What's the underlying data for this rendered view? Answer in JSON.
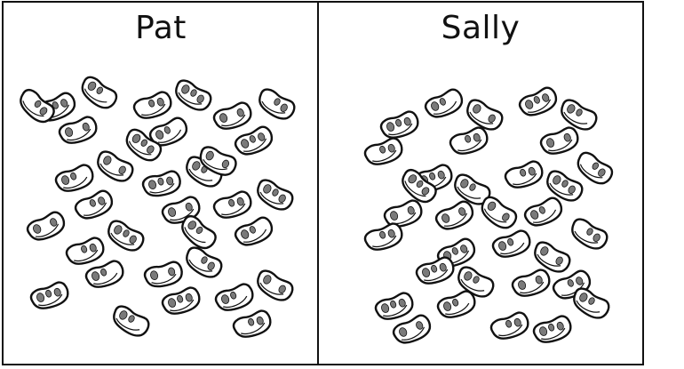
{
  "panels": {
    "left": {
      "title": "Pat"
    },
    "right": {
      "title": "Sally"
    }
  },
  "bean_counts": {
    "Pat": 34,
    "Sally": 33
  },
  "colors": {
    "ink": "#111111",
    "fill": "#ffffff",
    "spot": "#7a7a7a"
  }
}
